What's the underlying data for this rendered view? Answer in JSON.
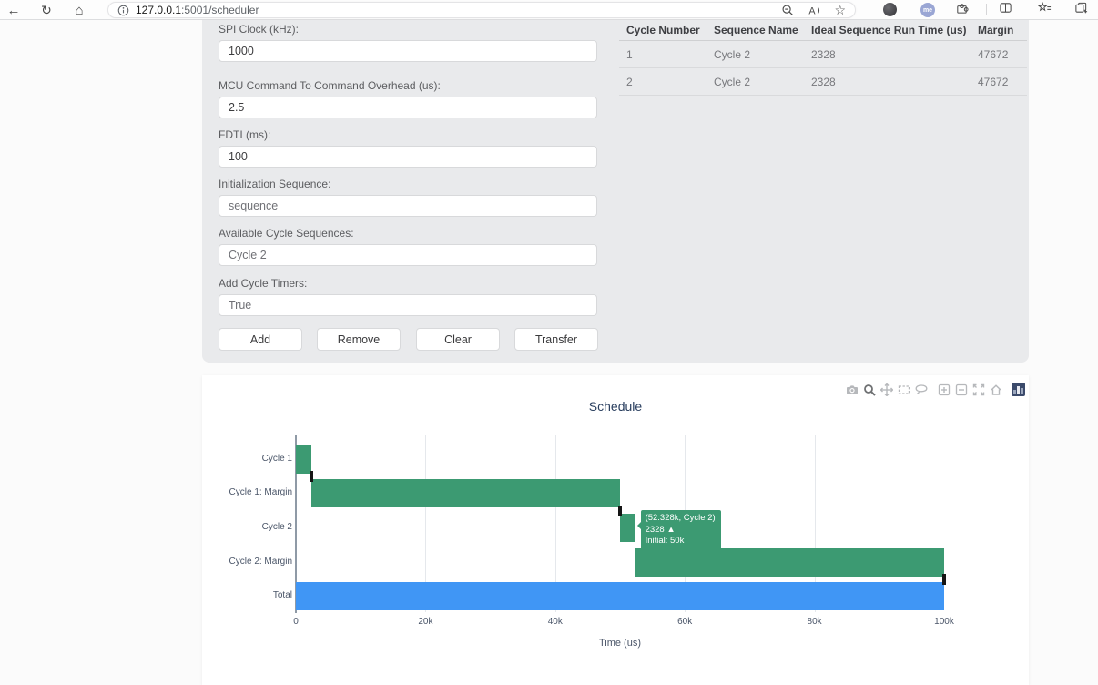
{
  "browser": {
    "url_host": "127.0.0.1",
    "url_path": ":5001/scheduler",
    "profile_label": "me",
    "toolbar_icons": [
      "back-icon",
      "refresh-icon",
      "home-icon",
      "info-icon",
      "zoom-icon",
      "read-aloud-icon",
      "favorite-star-icon",
      "extension-icon",
      "profile-avatar",
      "extensions-puzzle-icon",
      "split-screen-icon",
      "favorites-icon",
      "workspaces-icon"
    ]
  },
  "form": {
    "fields": [
      {
        "label": "SPI Clock (kHz):",
        "value": "1000",
        "muted": false
      },
      {
        "label": "MCU Command To Command Overhead (us):",
        "value": "2.5",
        "muted": false
      },
      {
        "label": "FDTI (ms):",
        "value": "100",
        "muted": false
      },
      {
        "label": "Initialization Sequence:",
        "value": "sequence",
        "muted": true
      },
      {
        "label": "Available Cycle Sequences:",
        "value": "Cycle 2",
        "muted": true
      },
      {
        "label": "Add Cycle Timers:",
        "value": "True",
        "muted": true
      }
    ],
    "buttons": [
      "Add",
      "Remove",
      "Clear",
      "Transfer"
    ]
  },
  "table": {
    "headers": [
      "Cycle Number",
      "Sequence Name",
      "Ideal Sequence Run Time (us)",
      "Margin"
    ],
    "rows": [
      [
        "1",
        "Cycle 2",
        "2328",
        "47672"
      ],
      [
        "2",
        "Cycle 2",
        "2328",
        "47672"
      ]
    ]
  },
  "chart_data": {
    "type": "gantt-bar",
    "title": "Schedule",
    "xlabel": "Time (us)",
    "x_range": [
      0,
      100000
    ],
    "x_ticks": [
      {
        "v": 0,
        "label": "0"
      },
      {
        "v": 20000,
        "label": "20k"
      },
      {
        "v": 40000,
        "label": "40k"
      },
      {
        "v": 60000,
        "label": "60k"
      },
      {
        "v": 80000,
        "label": "80k"
      },
      {
        "v": 100000,
        "label": "100k"
      }
    ],
    "rows": [
      "Cycle 1",
      "Cycle 1: Margin",
      "Cycle 2",
      "Cycle 2: Margin",
      "Total"
    ],
    "bars": [
      {
        "row": 0,
        "label": "Cycle 1",
        "start": 0,
        "end": 2328,
        "color": "#3c9a72"
      },
      {
        "row": 1,
        "label": "Cycle 1: Margin",
        "start": 2328,
        "end": 50000,
        "color": "#3c9a72"
      },
      {
        "row": 2,
        "label": "Cycle 2",
        "start": 50000,
        "end": 52328,
        "color": "#3c9a72"
      },
      {
        "row": 3,
        "label": "Cycle 2: Margin",
        "start": 52328,
        "end": 100000,
        "color": "#3c9a72"
      },
      {
        "row": 4,
        "label": "Total",
        "start": 0,
        "end": 100000,
        "color": "#4096f5"
      }
    ],
    "timer_marks": [
      {
        "x": 2328,
        "between_rows": [
          0,
          1
        ]
      },
      {
        "x": 50000,
        "between_rows": [
          1,
          2
        ]
      },
      {
        "x": 100000,
        "between_rows": [
          3,
          4
        ]
      }
    ],
    "tooltip": {
      "anchor_x": 52328,
      "anchor_row": 2,
      "lines": [
        "(52.328k, Cycle 2)",
        "2328 ▲",
        "Initial: 50k"
      ],
      "color": "#3c9a72"
    },
    "modebar_icons": [
      "download-plot-icon",
      "zoom-icon",
      "pan-icon",
      "box-select-icon",
      "lasso-select-icon",
      "zoom-in-icon",
      "zoom-out-icon",
      "autoscale-icon",
      "reset-axes-icon",
      "plotly-logo"
    ]
  }
}
